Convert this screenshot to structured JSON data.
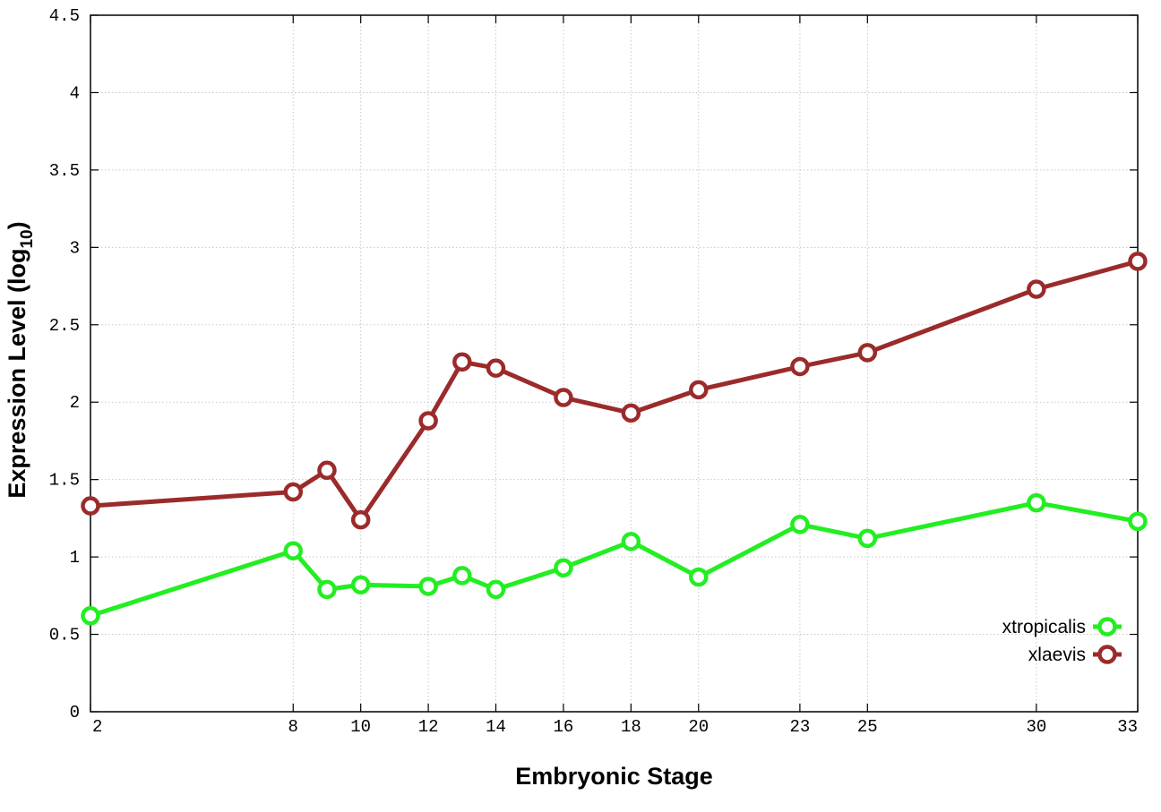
{
  "chart_data": {
    "type": "line",
    "xlabel": "Embryonic Stage",
    "ylabel": "Expression Level (log",
    "ylabel_sub": "10",
    "ylabel_close": ")",
    "x": [
      2,
      8,
      9,
      10,
      12,
      13,
      14,
      16,
      18,
      20,
      23,
      25,
      30,
      33
    ],
    "x_tick_labels": [
      "2",
      "8",
      "10",
      "12",
      "14",
      "16",
      "18",
      "20",
      "23",
      "25",
      "30",
      "33"
    ],
    "x_tick_values": [
      2,
      8,
      10,
      12,
      14,
      16,
      18,
      20,
      23,
      25,
      30,
      33
    ],
    "xlim": [
      2,
      33
    ],
    "ylim": [
      0,
      4.5
    ],
    "y_tick_values": [
      0,
      0.5,
      1,
      1.5,
      2,
      2.5,
      3,
      3.5,
      4,
      4.5
    ],
    "y_tick_labels": [
      "0",
      "0.5",
      "1",
      "1.5",
      "2",
      "2.5",
      "3",
      "3.5",
      "4",
      "4.5"
    ],
    "grid": true,
    "legend_position": "bottom-right",
    "series": [
      {
        "name": "xtropicalis",
        "color": "#22ee22",
        "values": [
          0.62,
          1.04,
          0.79,
          0.82,
          0.81,
          0.88,
          0.79,
          0.93,
          1.1,
          0.87,
          1.21,
          1.12,
          1.35,
          1.23
        ]
      },
      {
        "name": "xlaevis",
        "color": "#9b2b2b",
        "values": [
          1.33,
          1.42,
          1.56,
          1.24,
          1.88,
          2.26,
          2.22,
          2.03,
          1.93,
          2.08,
          2.23,
          2.32,
          2.73,
          2.91
        ]
      }
    ]
  }
}
